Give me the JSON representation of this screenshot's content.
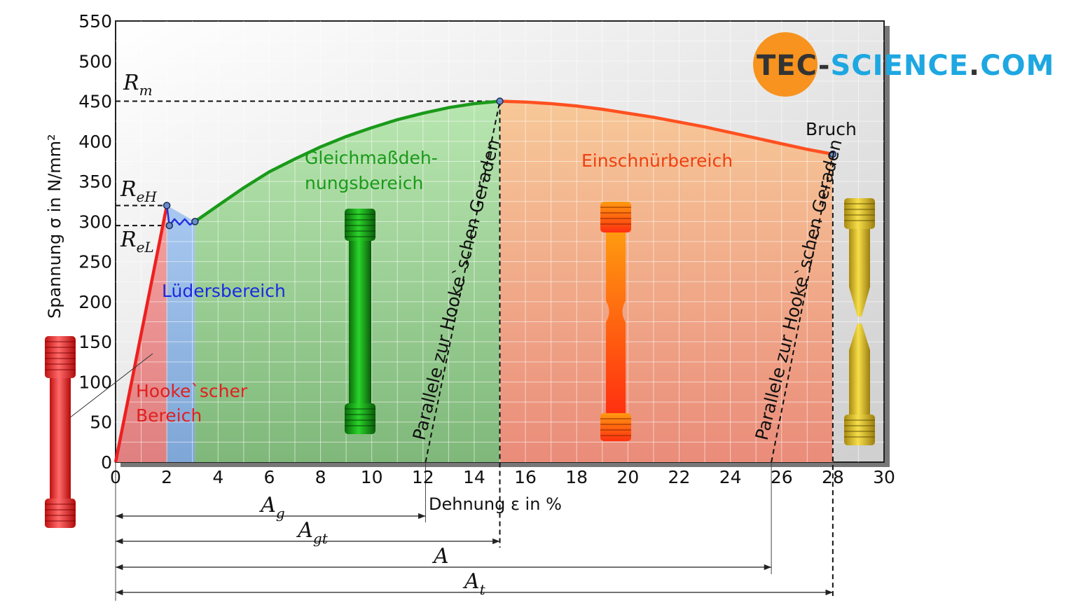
{
  "chart_data": {
    "type": "line",
    "xlabel": "Dehnung ε in %",
    "ylabel": "Spannung σ in N/mm²",
    "xlim": [
      0,
      30
    ],
    "ylim": [
      0,
      550
    ],
    "xticks": [
      0,
      2,
      4,
      6,
      8,
      10,
      12,
      14,
      16,
      18,
      20,
      22,
      24,
      26,
      28,
      30
    ],
    "yticks": [
      0,
      50,
      100,
      150,
      200,
      250,
      300,
      350,
      400,
      450,
      500,
      550
    ],
    "grid": true,
    "series": [
      {
        "name": "Hooke`scher Bereich",
        "color": "#ee2020",
        "x": [
          0,
          2
        ],
        "y": [
          0,
          320
        ]
      },
      {
        "name": "Lüdersbereich",
        "color": "#2030e0",
        "x": [
          2,
          2.1,
          2.3,
          2.5,
          2.7,
          2.9,
          3.1
        ],
        "y": [
          320,
          295,
          303,
          296,
          303,
          296,
          300
        ]
      },
      {
        "name": "Gleichmaßdehnungsbereich",
        "color": "#1a9a1a",
        "x": [
          3.1,
          4,
          5,
          6,
          7,
          8,
          9,
          10,
          11,
          12,
          13,
          14,
          15
        ],
        "y": [
          300,
          320,
          342,
          362,
          378,
          393,
          406,
          417,
          427,
          435,
          442,
          447,
          450
        ]
      },
      {
        "name": "Einschnürbereich",
        "color": "#ff5020",
        "x": [
          15,
          16,
          17,
          18,
          19,
          20,
          21,
          22,
          23,
          24,
          25,
          26,
          27,
          28
        ],
        "y": [
          450,
          449,
          447,
          444,
          440,
          435,
          430,
          424,
          418,
          411,
          404,
          397,
          390,
          384
        ]
      }
    ],
    "key_points": [
      {
        "label": "ReH",
        "x": 2,
        "y": 320
      },
      {
        "label": "ReL",
        "x": 2.1,
        "y": 295
      },
      {
        "label": "Rm",
        "x": 15,
        "y": 450
      },
      {
        "label": "Bruch",
        "x": 28,
        "y": 384
      }
    ],
    "hooke_parallels": [
      {
        "label": "Parallele zur Hooke`schen Geraden",
        "x_start": 12.1,
        "x_end": 15,
        "y_end": 450
      },
      {
        "label": "Parallele zur Hooke`schen Geraden",
        "x_start": 25.6,
        "x_end": 28,
        "y_end": 384
      }
    ],
    "region_labels": {
      "hooke": [
        "Hooke`scher",
        "Bereich"
      ],
      "lueders": "Lüdersbereich",
      "gleichmass": [
        "Gleichmaßdeh-",
        "nungsbereich"
      ],
      "einschnuer": "Einschnürbereich",
      "bruch": "Bruch"
    },
    "strength_labels": {
      "rm": [
        "R",
        "m"
      ],
      "reh": [
        "R",
        "eH"
      ],
      "rel": [
        "R",
        "eL"
      ]
    },
    "elongations": [
      {
        "label": [
          "A",
          "g"
        ],
        "end_x": 12.1
      },
      {
        "label": [
          "A",
          "gt"
        ],
        "end_x": 15
      },
      {
        "label": [
          "A",
          ""
        ],
        "end_x": 25.6
      },
      {
        "label": [
          "A",
          "t"
        ],
        "end_x": 28
      }
    ]
  },
  "logo": {
    "part1": "TEC",
    "sep": "-",
    "part2": "SCIENCE",
    "dot": ".",
    "part3": "COM",
    "circle_color": "#f7931e",
    "dark_color": "#333333",
    "accent_color": "#1ea7e1"
  },
  "colors": {
    "plot_bg": "#e8e8e8",
    "grid": "#ffffff",
    "hooke": "#ee2020",
    "lueders": "#2030e0",
    "gleich": "#1a9a1a",
    "einschnuer": "#ff5020"
  }
}
